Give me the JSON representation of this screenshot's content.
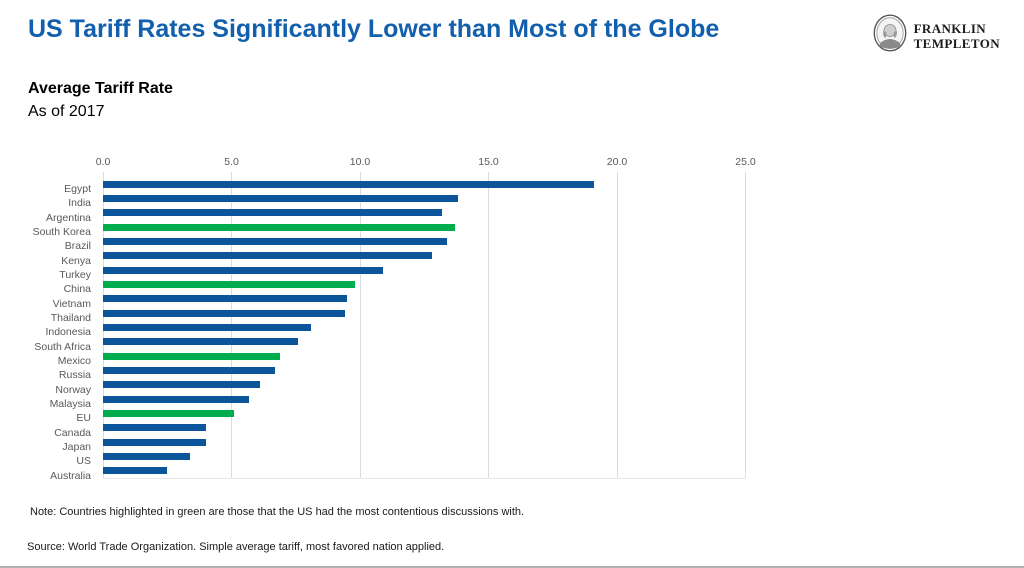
{
  "page": {
    "title": "US Tariff Rates Significantly Lower than Most of the Globe",
    "accent_color": "#125fad",
    "bottom_rule_color": "#b0b0b0"
  },
  "logo": {
    "name": "Franklin Templeton",
    "line1": "FRANKLIN",
    "line2": "TEMPLETON"
  },
  "chart_data": {
    "type": "bar",
    "orientation": "horizontal",
    "title": "Average Tariff Rate",
    "subtitle": "As of 2017",
    "xlabel": "",
    "ylabel": "",
    "xlim": [
      0,
      25
    ],
    "xticks": [
      0,
      5,
      10,
      15,
      20,
      25
    ],
    "tick_labels": [
      "0.0",
      "5.0",
      "10.0",
      "15.0",
      "20.0",
      "25.0"
    ],
    "grid": "vertical",
    "legend": "none",
    "categories": [
      "Egypt",
      "India",
      "Argentina",
      "South Korea",
      "Brazil",
      "Kenya",
      "Turkey",
      "China",
      "Vietnam",
      "Thailand",
      "Indonesia",
      "South Africa",
      "Mexico",
      "Russia",
      "Norway",
      "Malaysia",
      "EU",
      "Canada",
      "Japan",
      "US",
      "Australia"
    ],
    "values": [
      19.1,
      13.8,
      13.2,
      13.7,
      13.4,
      12.8,
      10.9,
      9.8,
      9.5,
      9.4,
      8.1,
      7.6,
      6.9,
      6.7,
      6.1,
      5.7,
      5.1,
      4.0,
      4.0,
      3.4,
      2.5
    ],
    "highlighted_categories": [
      "South Korea",
      "China",
      "Mexico",
      "EU"
    ],
    "highlight_meaning": "Countries the US had the most contentious discussions with",
    "colors": {
      "bar": "#0d559b",
      "highlight": "#00ac4e",
      "grid": "#dcdcdc",
      "axis_label": "#595959"
    }
  },
  "footnotes": {
    "note": "Note: Countries highlighted in green are those that the US had the most contentious discussions with.",
    "source": "Source: World Trade Organization. Simple average tariff, most favored nation applied."
  }
}
